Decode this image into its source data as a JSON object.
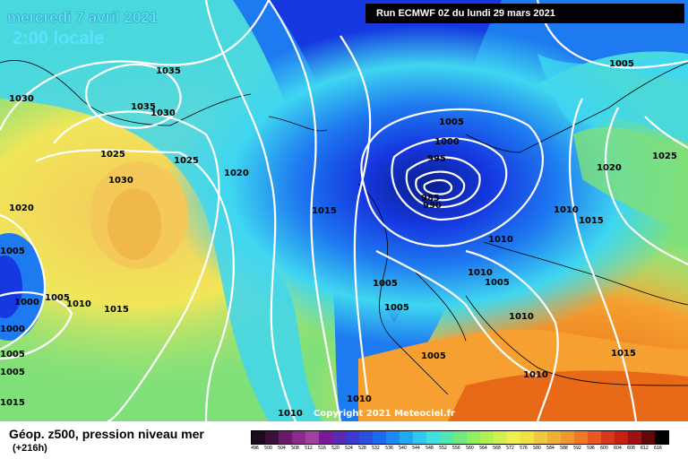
{
  "header": {
    "date": "mercredi 7 avril 2021",
    "time": "2:00 locale",
    "run": "Run ECMWF 0Z du lundi 29 mars 2021"
  },
  "footer": {
    "title": "Géop. z500, pression niveau mer",
    "subtitle": "(+216h)",
    "copyright": "Copyright 2021 Meteociel.fr"
  },
  "colors": {
    "low_center": "#0a1e8c",
    "trough": "#1538e0",
    "mid_blue": "#1e7af0",
    "cyan": "#3fd6f0",
    "green": "#7fe07a",
    "yellow": "#f0e65a",
    "orange": "#f5a030",
    "deep_orange": "#e86a18"
  },
  "scale": {
    "labels": [
      "496",
      "500",
      "504",
      "508",
      "512",
      "516",
      "520",
      "524",
      "528",
      "532",
      "536",
      "540",
      "544",
      "548",
      "552",
      "556",
      "560",
      "564",
      "568",
      "572",
      "576",
      "580",
      "584",
      "588",
      "592",
      "596",
      "600",
      "604",
      "608",
      "612",
      "616"
    ],
    "colors": [
      "#1a0a1a",
      "#3a103a",
      "#6a1a6a",
      "#8a2a8a",
      "#a040a0",
      "#7a1a9a",
      "#5a2ab0",
      "#3a3ad0",
      "#2a50e0",
      "#1a6af0",
      "#1a8af0",
      "#20a8f0",
      "#30c8f0",
      "#40e0e0",
      "#50e8b0",
      "#70e880",
      "#90f060",
      "#b0f050",
      "#d0f050",
      "#f0f050",
      "#f0e040",
      "#f0c840",
      "#f0b038",
      "#f09830",
      "#f07828",
      "#e85820",
      "#d83818",
      "#c82010",
      "#a01010",
      "#600808",
      "#000000"
    ]
  },
  "isobars": [
    {
      "label": "1035",
      "kind": "high"
    },
    {
      "label": "1030",
      "kind": "high"
    },
    {
      "label": "1025",
      "kind": "high"
    },
    {
      "label": "1020",
      "kind": "neutral"
    },
    {
      "label": "1015",
      "kind": "neutral"
    },
    {
      "label": "1010",
      "kind": "neutral"
    },
    {
      "label": "1005",
      "kind": "low"
    },
    {
      "label": "1000",
      "kind": "low"
    },
    {
      "label": "995",
      "kind": "low"
    },
    {
      "label": "990",
      "kind": "low"
    },
    {
      "label": "985",
      "kind": "low"
    }
  ],
  "pressure_labels": [
    "1030",
    "1035",
    "1035",
    "1030",
    "1025",
    "1025",
    "1030",
    "1020",
    "1020",
    "1015",
    "1015",
    "1010",
    "1005",
    "1005",
    "1000",
    "1005",
    "1000",
    "995",
    "990",
    "985",
    "1005",
    "1005",
    "1005",
    "1010",
    "1010",
    "1015",
    "1005",
    "1010",
    "1010",
    "1015",
    "1020",
    "1025",
    "1005",
    "1010",
    "1010",
    "1005",
    "1000",
    "1005",
    "1015",
    "1010"
  ]
}
